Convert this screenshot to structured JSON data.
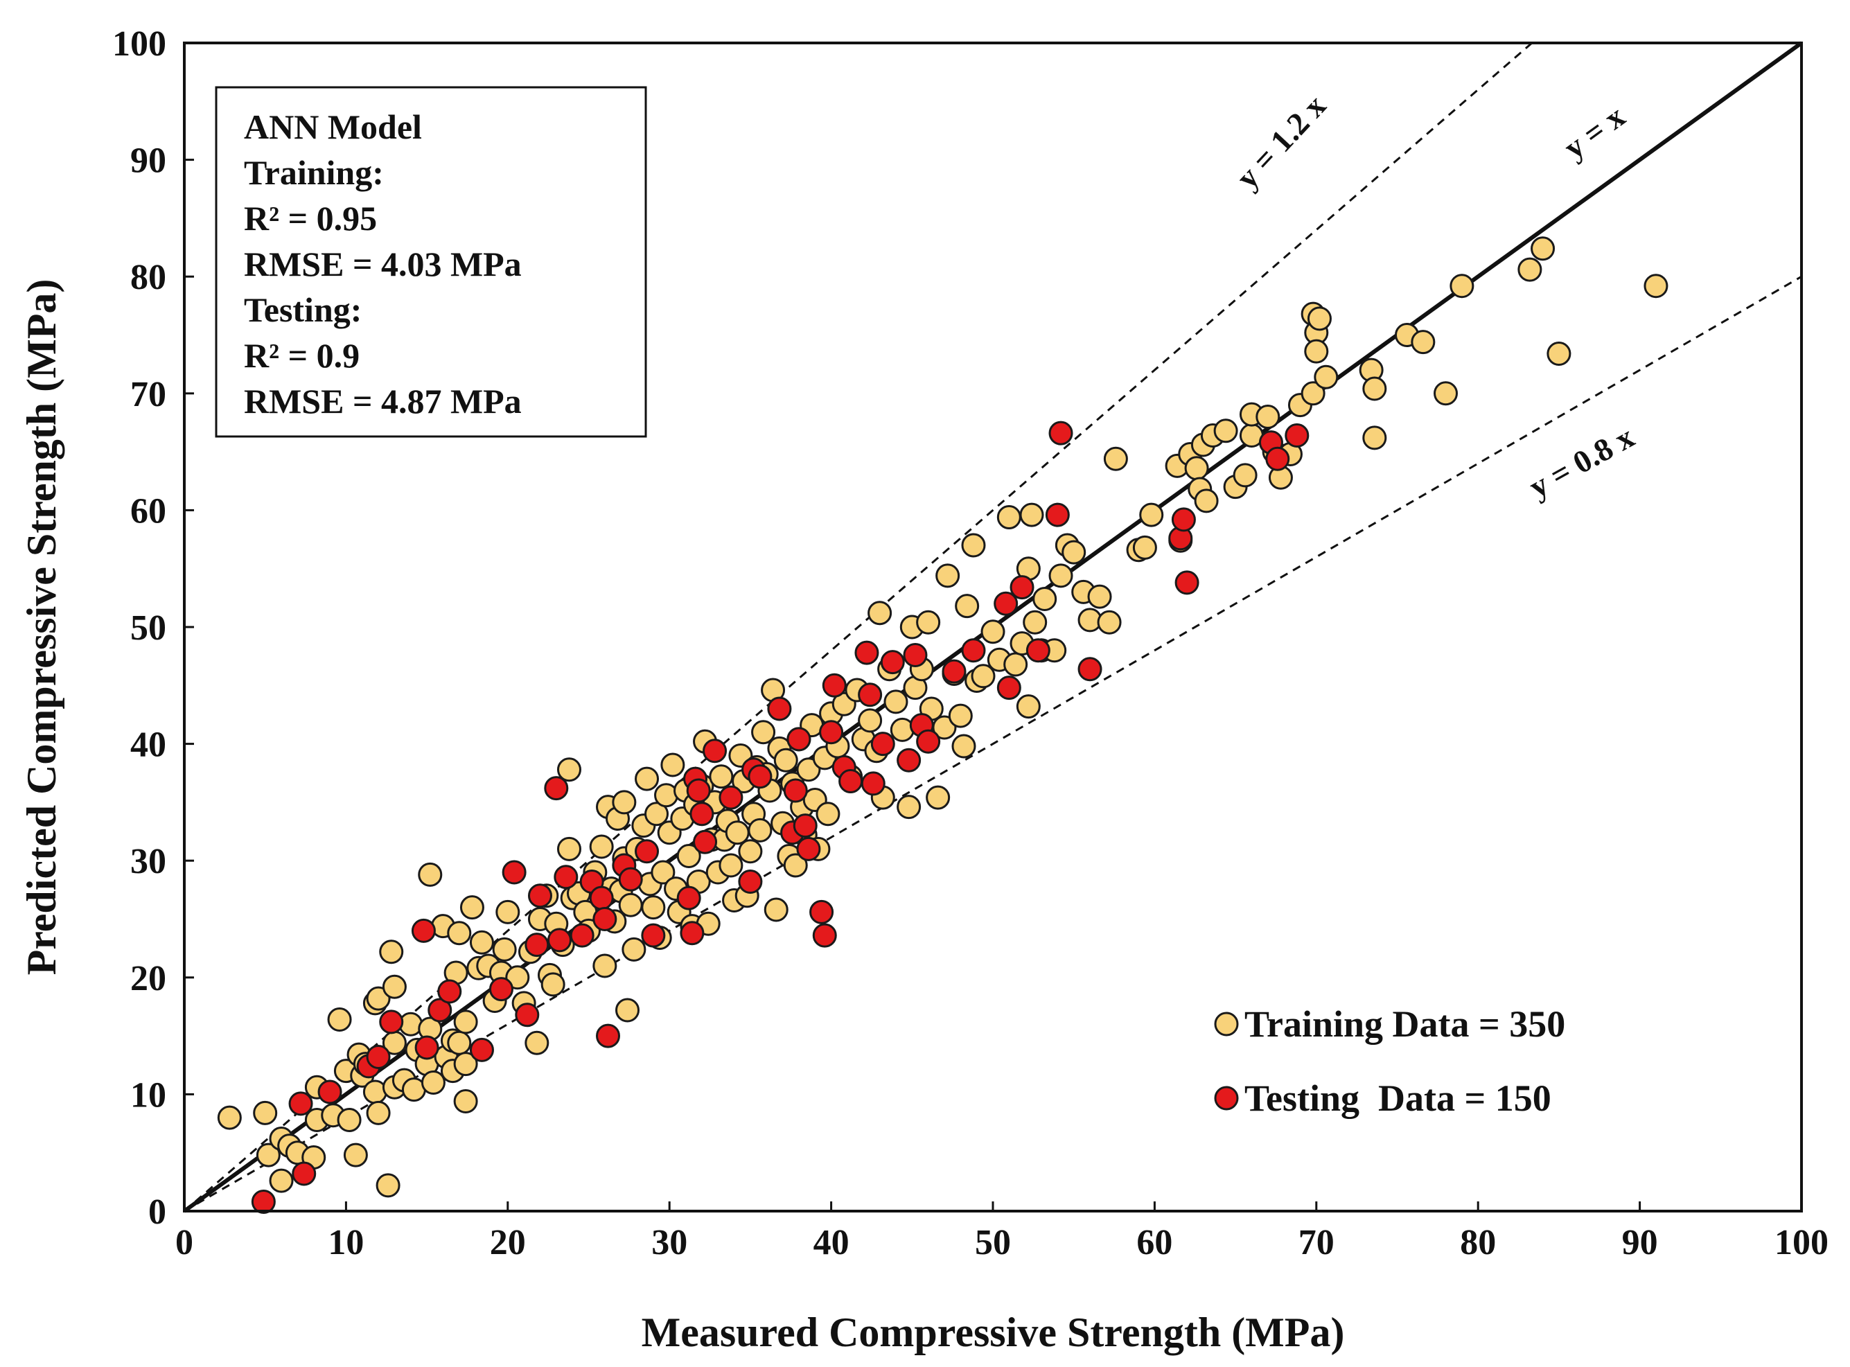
{
  "chart_data": {
    "type": "scatter",
    "title": "",
    "xlabel": "Measured Compressive Strength (MPa)",
    "ylabel": "Predicted Compressive Strength (MPa)",
    "xlim": [
      0,
      100
    ],
    "ylim": [
      0,
      100
    ],
    "x_ticks": [
      "0",
      "10",
      "20",
      "30",
      "40",
      "50",
      "60",
      "70",
      "80",
      "90",
      "100"
    ],
    "y_ticks": [
      "0",
      "10",
      "20",
      "30",
      "40",
      "50",
      "60",
      "70",
      "80",
      "90",
      "100"
    ],
    "grid": false,
    "legend_position": "bottom-right",
    "legend": [
      "Training Data = 350",
      "Testing  Data = 150"
    ],
    "colors": {
      "training": "#f8d27a",
      "testing": "#e41a1c",
      "edge": "#1a1a1a",
      "line": "#111111"
    },
    "reference_lines": [
      {
        "label": "y = x",
        "slope": 1.0,
        "style": "solid"
      },
      {
        "label": "y = 1.2 x",
        "slope": 1.2,
        "style": "dashed"
      },
      {
        "label": "y = 0.8 x",
        "slope": 0.8,
        "style": "dashed"
      }
    ],
    "info_box": {
      "lines": [
        "ANN Model",
        "Training:",
        "R² = 0.95",
        "RMSE = 4.03 MPa",
        "Testing:",
        "R² = 0.9",
        "RMSE = 4.87 MPa"
      ],
      "position": "top-left"
    },
    "series": [
      {
        "name": "Training Data = 350",
        "points": [
          [
            2.8,
            8
          ],
          [
            5,
            8.4
          ],
          [
            5.2,
            4.8
          ],
          [
            6,
            6.2
          ],
          [
            6.5,
            5.6
          ],
          [
            7,
            5
          ],
          [
            6,
            2.6
          ],
          [
            8,
            4.6
          ],
          [
            8.2,
            7.8
          ],
          [
            8.2,
            10.6
          ],
          [
            9.2,
            8.2
          ],
          [
            9.6,
            16.4
          ],
          [
            10,
            12
          ],
          [
            10.2,
            7.8
          ],
          [
            10.6,
            4.8
          ],
          [
            10.8,
            13.4
          ],
          [
            11,
            11.6
          ],
          [
            11.2,
            12.6
          ],
          [
            11.8,
            10.2
          ],
          [
            12,
            8.4
          ],
          [
            11.8,
            17.8
          ],
          [
            12,
            18.2
          ],
          [
            12.6,
            2.2
          ],
          [
            12.8,
            22.2
          ],
          [
            13,
            19.2
          ],
          [
            13,
            14.4
          ],
          [
            13,
            10.6
          ],
          [
            13.6,
            11.2
          ],
          [
            14,
            16
          ],
          [
            14.2,
            10.4
          ],
          [
            14.4,
            13.8
          ],
          [
            15,
            12.6
          ],
          [
            15.2,
            28.8
          ],
          [
            15.2,
            15.6
          ],
          [
            15.4,
            11
          ],
          [
            16,
            24.4
          ],
          [
            16.2,
            13.2
          ],
          [
            16.6,
            14.6
          ],
          [
            16.6,
            12
          ],
          [
            16.8,
            20.4
          ],
          [
            17,
            23.8
          ],
          [
            17,
            14.4
          ],
          [
            17.4,
            12.6
          ],
          [
            17.4,
            16.2
          ],
          [
            17.4,
            9.4
          ],
          [
            17.8,
            26
          ],
          [
            18.2,
            20.8
          ],
          [
            18.4,
            23
          ],
          [
            18.8,
            21
          ],
          [
            19.2,
            18
          ],
          [
            19.6,
            20.4
          ],
          [
            19.8,
            22.4
          ],
          [
            20,
            25.6
          ],
          [
            20.6,
            20
          ],
          [
            21,
            17.8
          ],
          [
            21.4,
            22.2
          ],
          [
            21.8,
            14.4
          ],
          [
            22,
            25
          ],
          [
            22.4,
            27
          ],
          [
            22.6,
            20.2
          ],
          [
            22.8,
            19.4
          ],
          [
            23,
            24.6
          ],
          [
            23.4,
            22.8
          ],
          [
            23.8,
            37.8
          ],
          [
            23.8,
            31
          ],
          [
            24,
            26.8
          ],
          [
            24.4,
            27.2
          ],
          [
            24.8,
            25.6
          ],
          [
            25,
            24
          ],
          [
            25.4,
            29
          ],
          [
            25.8,
            31.2
          ],
          [
            26,
            21
          ],
          [
            26.2,
            34.6
          ],
          [
            26.4,
            27.6
          ],
          [
            26.6,
            24.8
          ],
          [
            26.8,
            33.6
          ],
          [
            27,
            27.4
          ],
          [
            27.2,
            35
          ],
          [
            27.2,
            30.2
          ],
          [
            27.4,
            17.2
          ],
          [
            27.6,
            26.2
          ],
          [
            27.8,
            22.4
          ],
          [
            28,
            31
          ],
          [
            28.4,
            33
          ],
          [
            28.6,
            37
          ],
          [
            28.8,
            28
          ],
          [
            29,
            26
          ],
          [
            29.2,
            34
          ],
          [
            29.4,
            23.4
          ],
          [
            29.6,
            29
          ],
          [
            29.8,
            35.6
          ],
          [
            30,
            32.4
          ],
          [
            30.2,
            38.2
          ],
          [
            30.4,
            27.6
          ],
          [
            30.6,
            25.6
          ],
          [
            30.8,
            33.6
          ],
          [
            31,
            36
          ],
          [
            31.2,
            30.4
          ],
          [
            31.4,
            24.4
          ],
          [
            31.6,
            34.8
          ],
          [
            31.8,
            28.2
          ],
          [
            32,
            36.4
          ],
          [
            32.2,
            40.2
          ],
          [
            32.4,
            24.6
          ],
          [
            32.6,
            31.8
          ],
          [
            32.8,
            35
          ],
          [
            33,
            29
          ],
          [
            33.2,
            37.2
          ],
          [
            33.4,
            31.8
          ],
          [
            33.6,
            33.4
          ],
          [
            33.8,
            29.6
          ],
          [
            34,
            26.6
          ],
          [
            34.2,
            32.4
          ],
          [
            34.4,
            39
          ],
          [
            34.6,
            36.8
          ],
          [
            34.8,
            27
          ],
          [
            35,
            30.8
          ],
          [
            35.2,
            34
          ],
          [
            35.4,
            38
          ],
          [
            35.6,
            32.6
          ],
          [
            35.8,
            41
          ],
          [
            36,
            37.4
          ],
          [
            36.2,
            36
          ],
          [
            36.4,
            44.6
          ],
          [
            36.6,
            25.8
          ],
          [
            36.8,
            39.6
          ],
          [
            37,
            33.2
          ],
          [
            37.2,
            38.6
          ],
          [
            37.4,
            30.4
          ],
          [
            37.6,
            36.6
          ],
          [
            37.8,
            29.6
          ],
          [
            38,
            40.4
          ],
          [
            38.2,
            34.6
          ],
          [
            38.4,
            32.2
          ],
          [
            38.6,
            37.8
          ],
          [
            38.8,
            41.6
          ],
          [
            39,
            35.2
          ],
          [
            39.2,
            31
          ],
          [
            39.6,
            38.8
          ],
          [
            39.8,
            34
          ],
          [
            40,
            42.6
          ],
          [
            40.4,
            39.8
          ],
          [
            40.8,
            43.4
          ],
          [
            41.2,
            37.2
          ],
          [
            41.6,
            44.6
          ],
          [
            42,
            40.4
          ],
          [
            42.4,
            42
          ],
          [
            42.8,
            39.4
          ],
          [
            43,
            51.2
          ],
          [
            43.2,
            35.4
          ],
          [
            43.6,
            46.4
          ],
          [
            44,
            43.6
          ],
          [
            44.4,
            41.2
          ],
          [
            44.8,
            34.6
          ],
          [
            45,
            50
          ],
          [
            45.2,
            44.8
          ],
          [
            45.6,
            46.4
          ],
          [
            46,
            50.4
          ],
          [
            46.2,
            43
          ],
          [
            46.6,
            35.4
          ],
          [
            47,
            41.4
          ],
          [
            47.2,
            54.4
          ],
          [
            47.6,
            46
          ],
          [
            48,
            42.4
          ],
          [
            48.2,
            39.8
          ],
          [
            48.4,
            51.8
          ],
          [
            48.8,
            57
          ],
          [
            49,
            45.4
          ],
          [
            49.4,
            45.8
          ],
          [
            50,
            49.6
          ],
          [
            50.4,
            47.2
          ],
          [
            51,
            59.4
          ],
          [
            51.4,
            46.8
          ],
          [
            51.8,
            48.6
          ],
          [
            52.2,
            43.2
          ],
          [
            52.2,
            55
          ],
          [
            52.4,
            59.6
          ],
          [
            52.6,
            50.4
          ],
          [
            53,
            48
          ],
          [
            53.2,
            52.4
          ],
          [
            53.8,
            48
          ],
          [
            54.2,
            54.4
          ],
          [
            54.6,
            57
          ],
          [
            55,
            56.4
          ],
          [
            55.6,
            53
          ],
          [
            56,
            50.6
          ],
          [
            56.6,
            52.6
          ],
          [
            57.2,
            50.4
          ],
          [
            57.6,
            64.4
          ],
          [
            59,
            56.6
          ],
          [
            59.4,
            56.8
          ],
          [
            59.8,
            59.6
          ],
          [
            61.4,
            63.8
          ],
          [
            61.6,
            57.4
          ],
          [
            62.2,
            64.8
          ],
          [
            62.6,
            63.6
          ],
          [
            62.8,
            61.8
          ],
          [
            63,
            65.6
          ],
          [
            63.2,
            60.8
          ],
          [
            63.6,
            66.4
          ],
          [
            64.4,
            66.8
          ],
          [
            65,
            62
          ],
          [
            65.6,
            63
          ],
          [
            66,
            66.4
          ],
          [
            66,
            68.2
          ],
          [
            67,
            68
          ],
          [
            67.4,
            65
          ],
          [
            67.8,
            62.8
          ],
          [
            68.4,
            64.8
          ],
          [
            69,
            69
          ],
          [
            69.8,
            70
          ],
          [
            69.8,
            76.8
          ],
          [
            70,
            75.2
          ],
          [
            70,
            73.6
          ],
          [
            70.2,
            76.4
          ],
          [
            70.6,
            71.4
          ],
          [
            73.4,
            72
          ],
          [
            73.6,
            70.4
          ],
          [
            73.6,
            66.2
          ],
          [
            75.6,
            75
          ],
          [
            76.6,
            74.4
          ],
          [
            78,
            70
          ],
          [
            79,
            79.2
          ],
          [
            83.2,
            80.6
          ],
          [
            84,
            82.4
          ],
          [
            85,
            73.4
          ],
          [
            91,
            79.2
          ]
        ]
      },
      {
        "name": "Testing  Data = 150",
        "points": [
          [
            4.9,
            0.8
          ],
          [
            7.2,
            9.2
          ],
          [
            7.4,
            3.2
          ],
          [
            9,
            10.2
          ],
          [
            11.4,
            12.4
          ],
          [
            12,
            13.2
          ],
          [
            12.8,
            16.2
          ],
          [
            14.8,
            24
          ],
          [
            15,
            14
          ],
          [
            15.8,
            17.2
          ],
          [
            16.4,
            18.8
          ],
          [
            18.4,
            13.8
          ],
          [
            19.6,
            19
          ],
          [
            20.4,
            29
          ],
          [
            21.2,
            16.8
          ],
          [
            21.8,
            22.8
          ],
          [
            22,
            27
          ],
          [
            23,
            36.2
          ],
          [
            23.2,
            23.2
          ],
          [
            23.6,
            28.6
          ],
          [
            24.6,
            23.6
          ],
          [
            25.2,
            28.2
          ],
          [
            25.8,
            26.8
          ],
          [
            26,
            25
          ],
          [
            26.2,
            15
          ],
          [
            27.2,
            29.6
          ],
          [
            27.6,
            28.4
          ],
          [
            28.6,
            30.8
          ],
          [
            29,
            23.6
          ],
          [
            31.2,
            26.8
          ],
          [
            31.4,
            23.8
          ],
          [
            31.6,
            37
          ],
          [
            31.8,
            36
          ],
          [
            32,
            34
          ],
          [
            32.2,
            31.6
          ],
          [
            32.8,
            39.4
          ],
          [
            33.8,
            35.4
          ],
          [
            35,
            28.2
          ],
          [
            35.2,
            37.8
          ],
          [
            35.6,
            37.2
          ],
          [
            36.8,
            43
          ],
          [
            37.6,
            32.4
          ],
          [
            37.8,
            36
          ],
          [
            38,
            40.4
          ],
          [
            38.4,
            33
          ],
          [
            38.6,
            31
          ],
          [
            39.4,
            25.6
          ],
          [
            39.6,
            23.6
          ],
          [
            40,
            41
          ],
          [
            40.2,
            45
          ],
          [
            40.8,
            38
          ],
          [
            41.2,
            36.8
          ],
          [
            42.2,
            47.8
          ],
          [
            42.4,
            44.2
          ],
          [
            42.6,
            36.6
          ],
          [
            43.2,
            40
          ],
          [
            43.8,
            47
          ],
          [
            44.8,
            38.6
          ],
          [
            45.2,
            47.6
          ],
          [
            45.6,
            41.6
          ],
          [
            46,
            40.2
          ],
          [
            47.6,
            46.2
          ],
          [
            48.8,
            48
          ],
          [
            50.8,
            52
          ],
          [
            51,
            44.8
          ],
          [
            51.8,
            53.4
          ],
          [
            52.8,
            48
          ],
          [
            54,
            59.6
          ],
          [
            54.2,
            66.6
          ],
          [
            56,
            46.4
          ],
          [
            61.6,
            57.6
          ],
          [
            61.8,
            59.2
          ],
          [
            62,
            53.8
          ],
          [
            67.2,
            65.8
          ],
          [
            67.6,
            64.4
          ],
          [
            68.8,
            66.4
          ]
        ]
      }
    ]
  }
}
